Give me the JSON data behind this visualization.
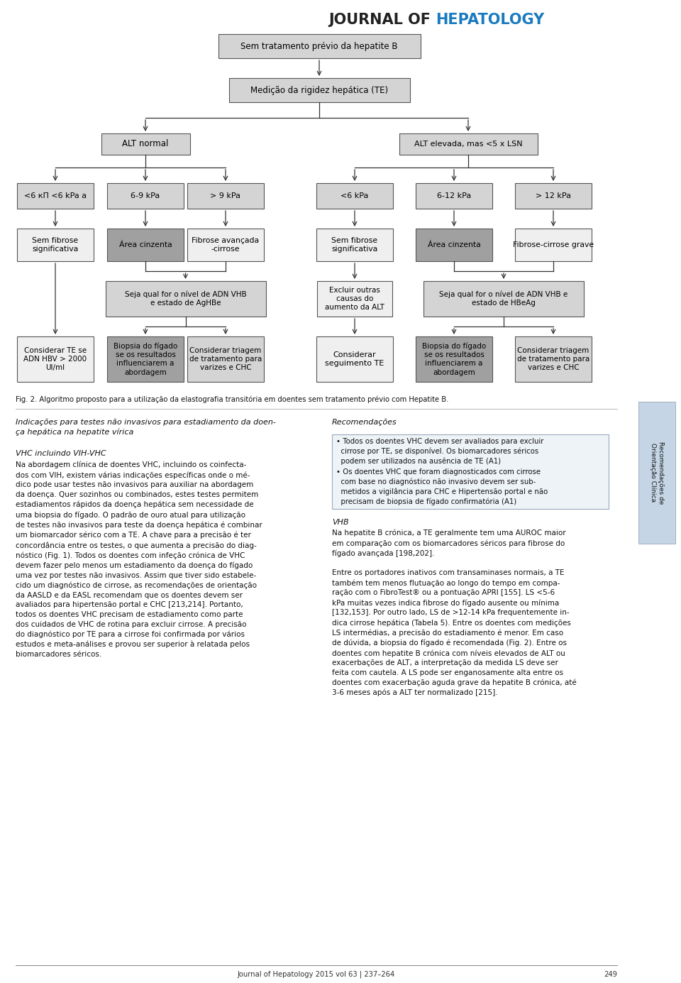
{
  "bg_color": "#ffffff",
  "box_fill_light": "#d4d4d4",
  "box_fill_dark": "#a0a0a0",
  "box_fill_white": "#efefef",
  "box_edge": "#555555",
  "arrow_color": "#333333",
  "header_of_color": "#222222",
  "header_hep_color": "#1a7abf",
  "footer_text": "Journal of Hepatology 2015 vol 63 | 237–264",
  "page_num": "249",
  "fig_caption": "Fig. 2. Algoritmo proposto para a utilização da elastografia transitória em doentes sem tratamento prévio com Hepatite B."
}
